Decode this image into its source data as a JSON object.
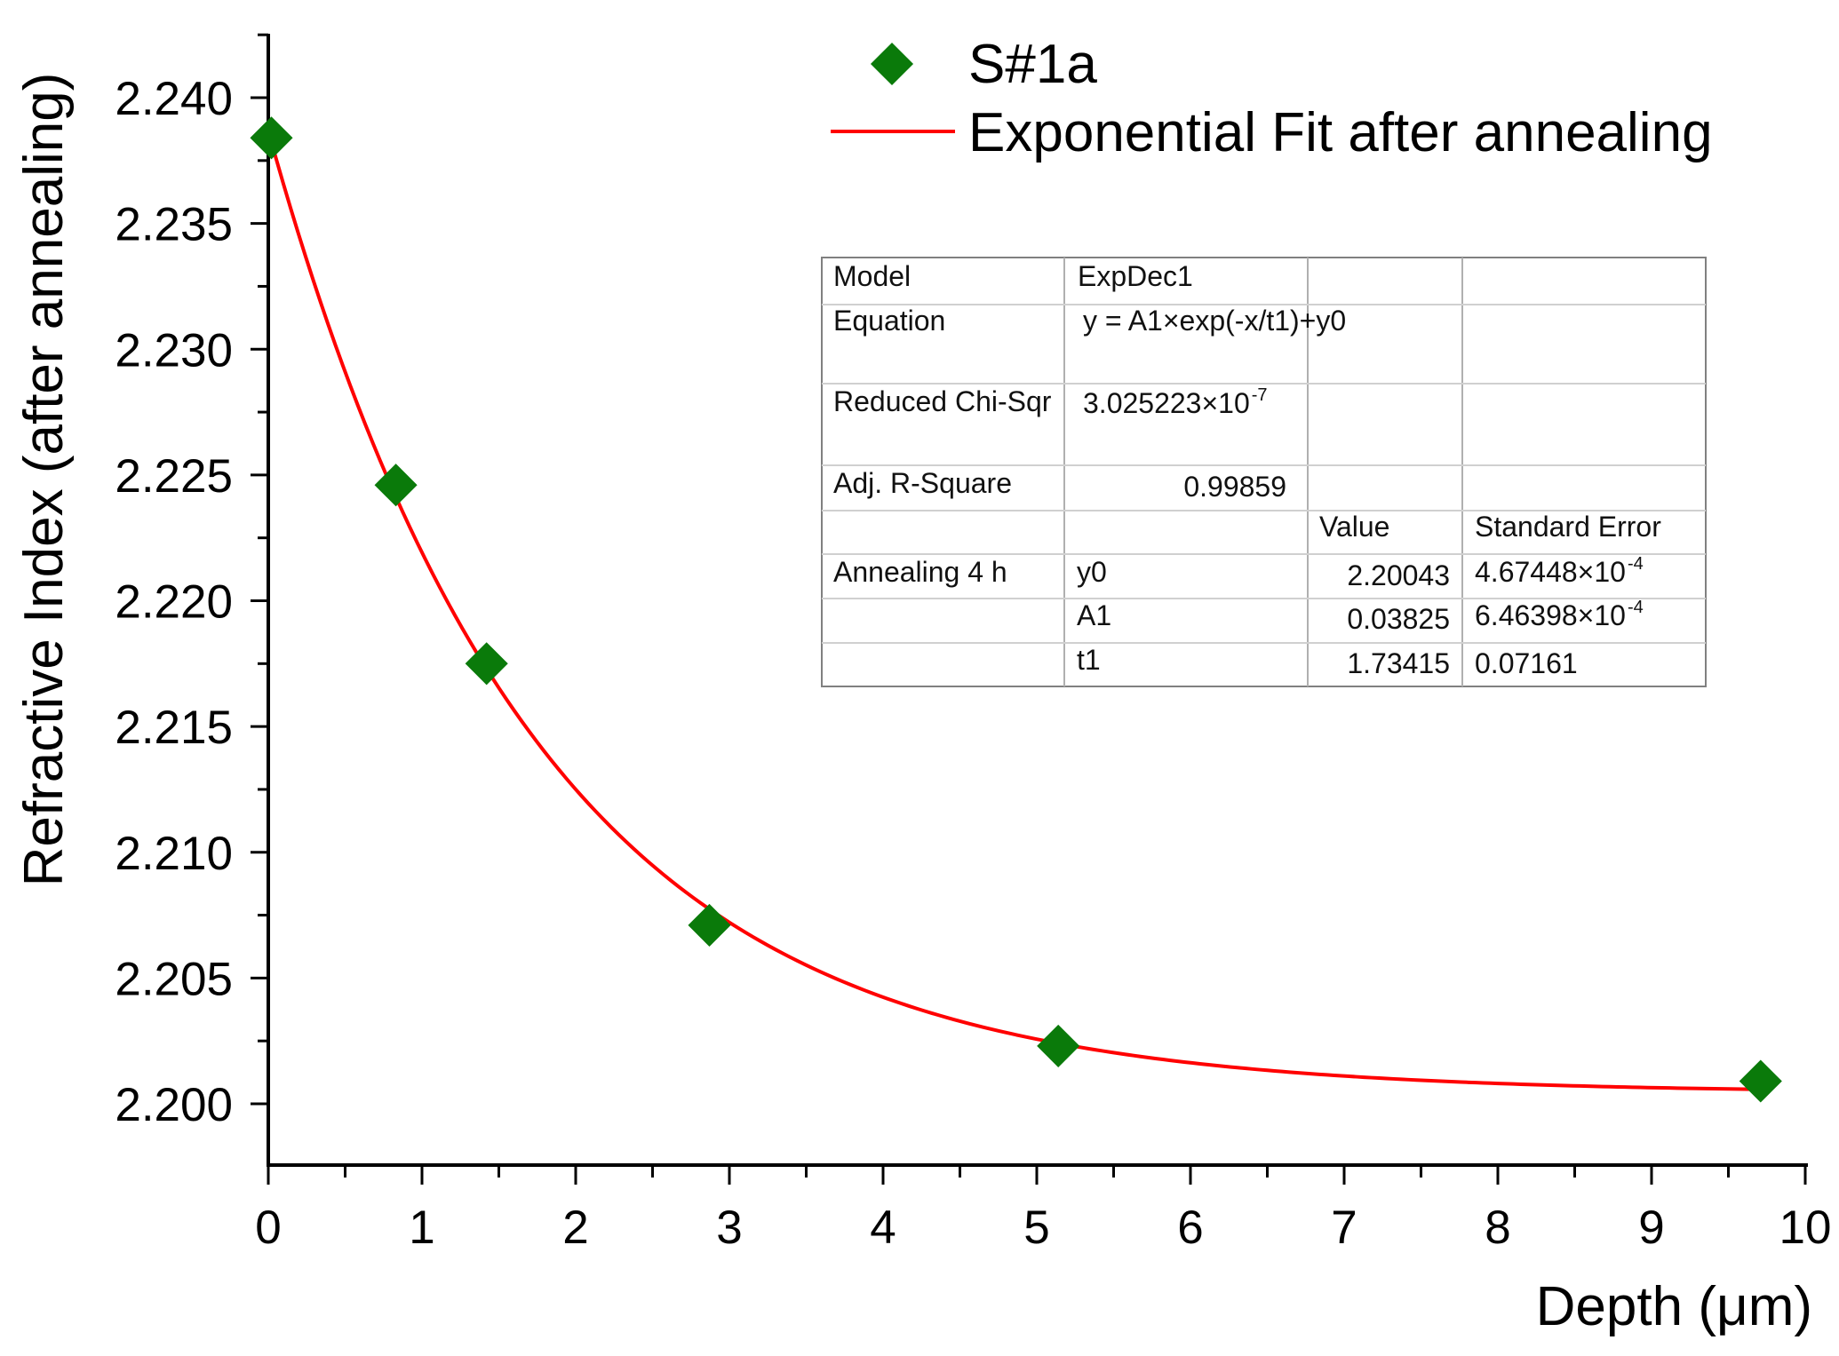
{
  "chart_data": {
    "type": "scatter",
    "xlabel": "Depth (μm)",
    "ylabel": "Refractive Index (after annealing)",
    "xlim": [
      0,
      10
    ],
    "ylim": [
      2.1975,
      2.2425
    ],
    "x_ticks": [
      "0",
      "1",
      "2",
      "3",
      "4",
      "5",
      "6",
      "7",
      "8",
      "9",
      "10"
    ],
    "y_ticks": [
      "2.200",
      "2.205",
      "2.210",
      "2.215",
      "2.220",
      "2.225",
      "2.230",
      "2.235",
      "2.240"
    ],
    "series": [
      {
        "name": "S#1a",
        "kind": "scatter",
        "marker": "diamond",
        "color": "#0a7a0a",
        "x": [
          0.02,
          0.83,
          1.42,
          2.87,
          5.14,
          9.71
        ],
        "y": [
          2.2384,
          2.2246,
          2.2175,
          2.2071,
          2.2023,
          2.2009
        ]
      },
      {
        "name": "Exponential Fit after annealing",
        "kind": "fit",
        "color": "#ff0000",
        "model": {
          "y0": 2.20043,
          "A1": 0.03825,
          "t1": 1.73415
        },
        "x_range": [
          0,
          9.7
        ]
      }
    ],
    "legend_position": "top-right",
    "grid": false,
    "fit_table": {
      "rows": [
        {
          "c1": "Model",
          "c2": "ExpDec1",
          "c3": "",
          "c4": ""
        },
        {
          "c1": "Equation",
          "c2": "y = A1×exp(-x/t1)+y0",
          "c3": "",
          "c4": ""
        },
        {
          "c1": "Reduced Chi-Sqr",
          "c2": "3.025223×10",
          "c2_sup": "-7",
          "c3": "",
          "c4": ""
        },
        {
          "c1": "Adj. R-Square",
          "c2": "0.99859",
          "c3": "",
          "c4": ""
        },
        {
          "c1": "",
          "c2": "",
          "c3": "Value",
          "c4": "Standard Error"
        },
        {
          "c1": "Annealing 4 h",
          "c2": "y0",
          "c3": "2.20043",
          "c4": "4.67448×10",
          "c4_sup": "-4"
        },
        {
          "c1": "",
          "c2": "A1",
          "c3": "0.03825",
          "c4": "6.46398×10",
          "c4_sup": "-4"
        },
        {
          "c1": "",
          "c2": "t1",
          "c3": "1.73415",
          "c4": "0.07161"
        }
      ]
    }
  }
}
